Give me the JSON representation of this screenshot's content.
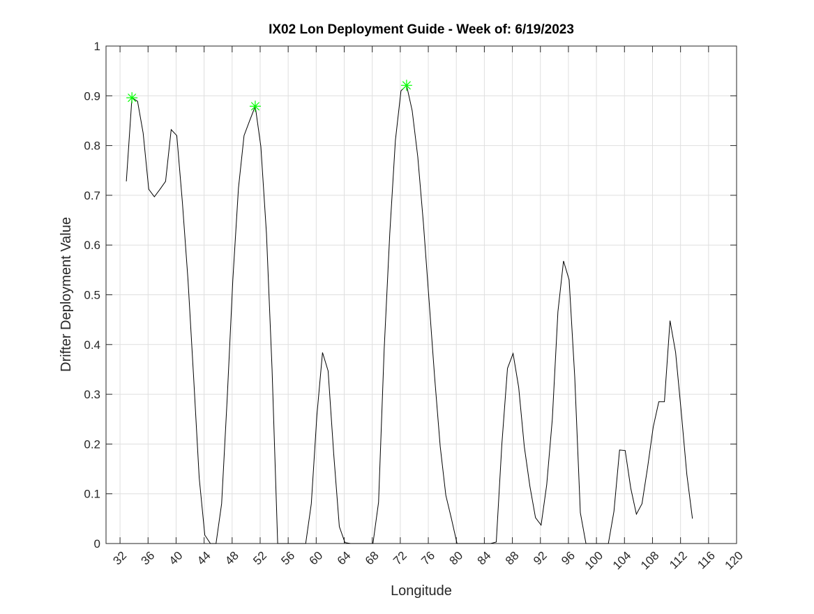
{
  "chart_data": {
    "type": "line",
    "title": "IX02 Lon Deployment Guide - Week of: 6/19/2023",
    "xlabel": "Longitude",
    "ylabel": "Drifter Deployment Value",
    "xlim": [
      30,
      120
    ],
    "ylim": [
      0,
      1
    ],
    "xticks": [
      32,
      36,
      40,
      44,
      48,
      52,
      56,
      60,
      64,
      68,
      72,
      76,
      80,
      84,
      88,
      92,
      96,
      100,
      104,
      108,
      112,
      116,
      120
    ],
    "yticks": [
      0,
      0.1,
      0.2,
      0.3,
      0.4,
      0.5,
      0.6,
      0.7,
      0.8,
      0.9,
      1
    ],
    "grid": true,
    "series": [
      {
        "color": "#000000",
        "x": [
          32.9,
          33.7,
          34.5,
          35.3,
          36.1,
          36.9,
          37.7,
          38.5,
          39.3,
          40.1,
          40.9,
          41.7,
          42.5,
          43.3,
          44.1,
          44.9,
          45.7,
          46.5,
          47.3,
          48.1,
          48.9,
          49.7,
          50.5,
          51.3,
          52.1,
          52.9,
          53.7,
          54.5,
          55.3,
          56.1,
          56.9,
          57.7,
          58.5,
          59.3,
          60.1,
          60.9,
          61.7,
          62.5,
          63.3,
          64.1,
          64.9,
          65.7,
          66.5,
          67.3,
          68.1,
          68.9,
          69.7,
          70.5,
          71.3,
          72.1,
          72.9,
          73.7,
          74.5,
          75.3,
          76.1,
          76.9,
          77.7,
          78.5,
          79.3,
          80.1,
          80.9,
          81.7,
          82.5,
          83.3,
          84.1,
          84.9,
          85.7,
          86.5,
          87.3,
          88.1,
          88.9,
          89.7,
          90.5,
          91.3,
          92.1,
          92.9,
          93.7,
          94.5,
          95.3,
          96.1,
          96.9,
          97.7,
          98.5,
          99.3,
          100.1,
          100.9,
          101.7,
          102.5,
          103.3,
          104.1,
          104.9,
          105.7,
          106.5,
          107.3,
          108.1,
          108.9,
          109.7,
          110.5,
          111.3,
          112.1,
          112.9,
          113.7
        ],
        "values": [
          0.728,
          0.896,
          0.889,
          0.825,
          0.712,
          0.697,
          0.712,
          0.728,
          0.832,
          0.82,
          0.686,
          0.53,
          0.335,
          0.132,
          0.017,
          0,
          0,
          0.08,
          0.293,
          0.53,
          0.714,
          0.82,
          0.85,
          0.879,
          0.798,
          0.623,
          0.35,
          0,
          0,
          0,
          0,
          0,
          0,
          0.08,
          0.258,
          0.384,
          0.347,
          0.18,
          0.034,
          0.002,
          0,
          0,
          0,
          0,
          0,
          0.083,
          0.39,
          0.623,
          0.81,
          0.91,
          0.921,
          0.87,
          0.777,
          0.644,
          0.49,
          0.335,
          0.195,
          0.097,
          0.05,
          0,
          0,
          0,
          0,
          0,
          0,
          0,
          0.003,
          0.2,
          0.352,
          0.382,
          0.314,
          0.195,
          0.115,
          0.052,
          0.037,
          0.118,
          0.25,
          0.466,
          0.568,
          0.53,
          0.335,
          0.062,
          0,
          0,
          0,
          0,
          0,
          0.065,
          0.188,
          0.187,
          0.111,
          0.059,
          0.08,
          0.153,
          0.234,
          0.285,
          0.285,
          0.448,
          0.384,
          0.265,
          0.139,
          0.05
        ]
      },
      {
        "color": "#00ff00",
        "marker": "*",
        "line": false,
        "x": [
          33.7,
          51.3,
          72.9
        ],
        "values": [
          0.896,
          0.879,
          0.921
        ]
      }
    ]
  }
}
